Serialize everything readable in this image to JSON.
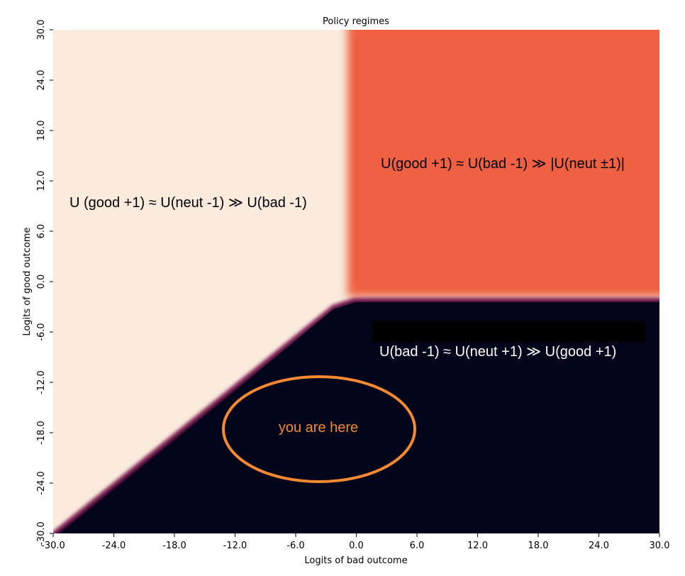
{
  "chart_data": {
    "type": "heatmap",
    "title": "Policy regimes",
    "x_label": "Logits of bad outcome",
    "y_label": "Logits of good outcome",
    "xlim": [
      -30,
      30
    ],
    "ylim": [
      -30,
      30
    ],
    "xticks": [
      {
        "value": -30,
        "label": "-30.0"
      },
      {
        "value": -24,
        "label": "-24.0"
      },
      {
        "value": -18,
        "label": "-18.0"
      },
      {
        "value": -12,
        "label": "-12.0"
      },
      {
        "value": -6,
        "label": "-6.0"
      },
      {
        "value": 0,
        "label": "0.0"
      },
      {
        "value": 6,
        "label": "6.0"
      },
      {
        "value": 12,
        "label": "12.0"
      },
      {
        "value": 18,
        "label": "18.0"
      },
      {
        "value": 24,
        "label": "24.0"
      },
      {
        "value": 30,
        "label": "30.0"
      }
    ],
    "yticks": [
      {
        "value": -30,
        "label": "-30.0"
      },
      {
        "value": -24,
        "label": "-24.0"
      },
      {
        "value": -18,
        "label": "-18.0"
      },
      {
        "value": -12,
        "label": "-12.0"
      },
      {
        "value": -6,
        "label": "-6.0"
      },
      {
        "value": 0,
        "label": "0.0"
      },
      {
        "value": 6,
        "label": "6.0"
      },
      {
        "value": 12,
        "label": "12.0"
      },
      {
        "value": 18,
        "label": "18.0"
      },
      {
        "value": 24,
        "label": "24.0"
      },
      {
        "value": 30,
        "label": "30.0"
      }
    ],
    "annotations": [
      "U (good +1) ≈ U(neut -1) ≫ U(bad -1)",
      "U(good +1) ≈ U(bad -1) ≫ |U(neut ±1)|",
      "U(bad -1) ≈ U(neut +1) ≫ U(good +1)",
      "you are here"
    ]
  }
}
